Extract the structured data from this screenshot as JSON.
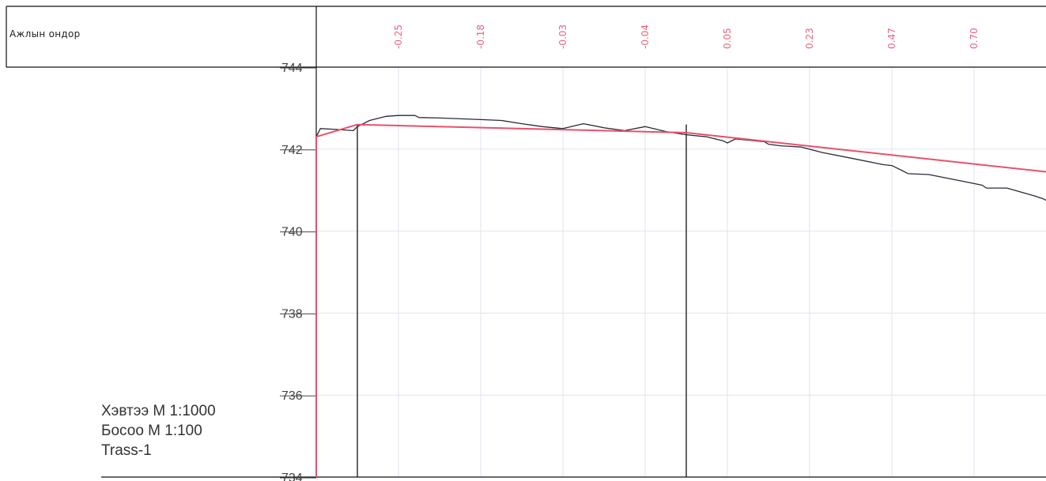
{
  "header": {
    "row_label": "Ажлын ондор"
  },
  "scale_block": {
    "horizontal": "Хэвтээ М 1:1000",
    "vertical": "Босоо М 1:100",
    "route": "Trass-1"
  },
  "colors": {
    "ground_line": "#2a2a3a",
    "design_line": "#e8506a",
    "grid": "#dde3ef",
    "frame": "#111111"
  },
  "chart_data": {
    "type": "line",
    "title": "",
    "xlabel": "",
    "ylabel": "",
    "ylim": [
      734,
      744
    ],
    "yticks": [
      744,
      742,
      740,
      738,
      736,
      734
    ],
    "grid": true,
    "xlim": [
      0,
      18
    ],
    "stations": [
      2,
      4,
      6,
      8,
      10,
      12,
      14,
      16
    ],
    "work_heights": [
      "-0.25",
      "-0.18",
      "-0.03",
      "-0.04",
      "0.05",
      "0.23",
      "0.47",
      "0.70"
    ],
    "structure_lines_x": [
      1,
      9
    ],
    "series": [
      {
        "role": "ground",
        "x": [
          0,
          0.1,
          0.5,
          0.9,
          1.0,
          1.3,
          1.7,
          2.0,
          2.4,
          2.5,
          3.0,
          4.0,
          4.5,
          5.0,
          5.5,
          6.0,
          6.5,
          7.0,
          7.5,
          8.0,
          8.5,
          9.0,
          9.5,
          9.9,
          10.0,
          10.2,
          10.9,
          11.0,
          11.3,
          11.8,
          12.3,
          13.0,
          13.8,
          14.0,
          14.4,
          14.9,
          15.3,
          15.8,
          16.2,
          16.3,
          16.8,
          17.5,
          17.7,
          18.0
        ],
        "y": [
          742.3,
          742.5,
          742.48,
          742.45,
          742.55,
          742.7,
          742.8,
          742.82,
          742.82,
          742.77,
          742.76,
          742.72,
          742.7,
          742.62,
          742.55,
          742.5,
          742.62,
          742.52,
          742.45,
          742.55,
          742.43,
          742.35,
          742.3,
          742.2,
          742.15,
          742.25,
          742.18,
          742.12,
          742.08,
          742.05,
          741.92,
          741.78,
          741.62,
          741.6,
          741.4,
          741.38,
          741.3,
          741.2,
          741.12,
          741.05,
          741.05,
          740.85,
          740.78,
          740.6
        ]
      },
      {
        "role": "design",
        "x": [
          0,
          1.0,
          9.0,
          18.0
        ],
        "y": [
          742.3,
          742.6,
          742.4,
          741.42
        ]
      }
    ]
  }
}
